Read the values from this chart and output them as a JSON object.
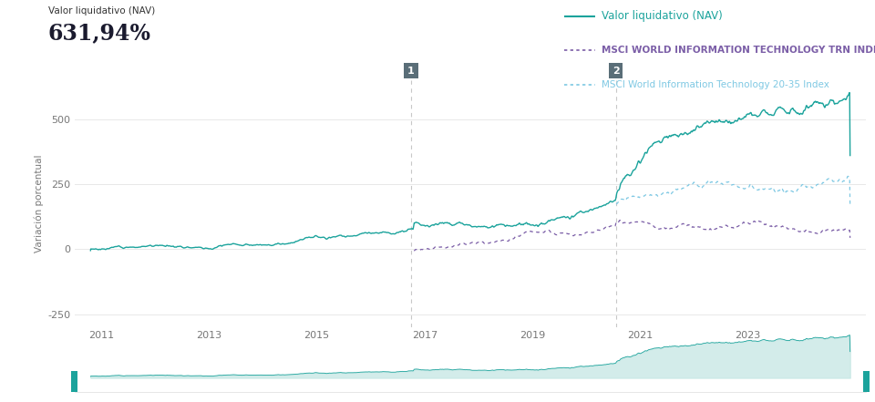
{
  "title_label": "Valor liquidativo (NAV)",
  "title_value": "631,94%",
  "legend": [
    {
      "label": "Valor liquidativo (NAV)",
      "color": "#1BA39C",
      "style": "solid"
    },
    {
      "label": "MSCI WORLD INFORMATION TECHNOLOGY TRN INDEX",
      "color": "#7B5EA7",
      "style": "dotted"
    },
    {
      "label": "MSCI World Information Technology 20-35 Index",
      "color": "#7EC8E3",
      "style": "dotted"
    }
  ],
  "ylabel": "Variación porcentual",
  "yticks": [
    -250,
    0,
    250,
    500
  ],
  "xticks": [
    2011,
    2013,
    2015,
    2017,
    2019,
    2021,
    2023
  ],
  "xlim": [
    2010.5,
    2025.2
  ],
  "ylim": [
    -300,
    650
  ],
  "marker1_x": 2016.75,
  "marker1_label": "1",
  "marker2_x": 2020.55,
  "marker2_label": "2",
  "nav_color": "#1BA39C",
  "index1_color": "#7B5EA7",
  "index2_color": "#7EC8E3",
  "minimap_fill_color": "#C8E8E5",
  "minimap_line_color": "#1BA39C",
  "background_color": "#FFFFFF",
  "grid_color": "#E8E8E8",
  "vline_color": "#C8C8C8",
  "marker_box_color": "#5A6E78"
}
